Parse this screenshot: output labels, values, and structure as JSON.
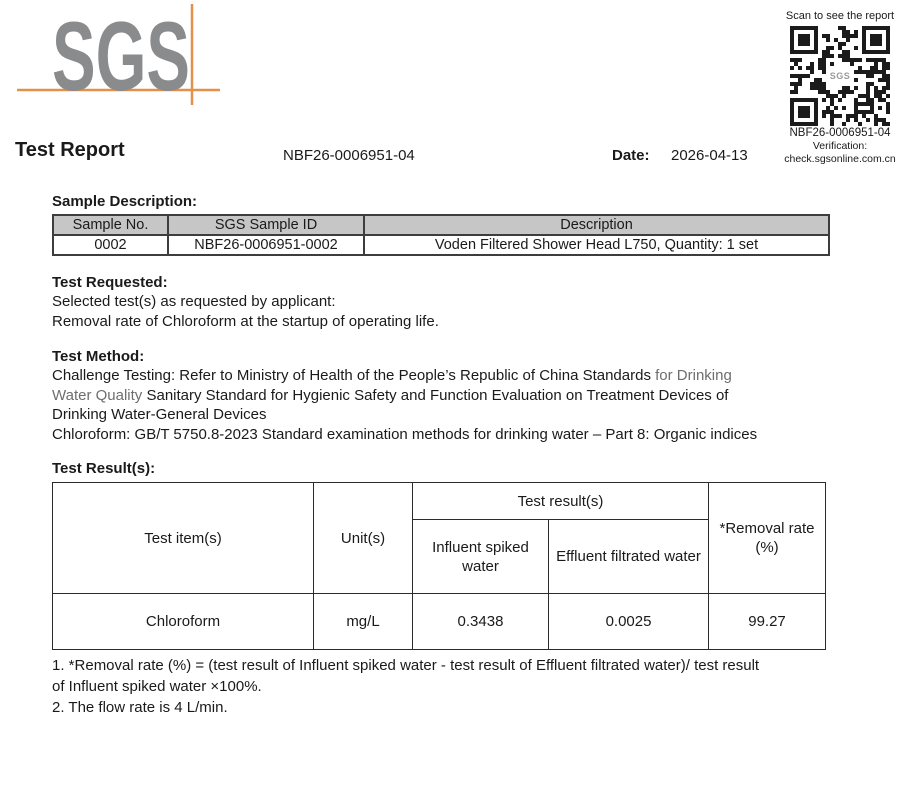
{
  "logo": {
    "text": "SGS",
    "letters_color": "#8a8b8d",
    "crosshair_color": "#e2914a"
  },
  "qr_panel": {
    "scan_label": "Scan to see the report",
    "center_label": "SGS",
    "report_no": "NBF26-0006951-04",
    "verification_label": "Verification:",
    "verification_url": "check.sgsonline.com.cn"
  },
  "header": {
    "title": "Test Report",
    "report_no": "NBF26-0006951-04",
    "date_label": "Date:",
    "date_value": "2026-04-13"
  },
  "sample_description": {
    "heading": "Sample Description:",
    "header_bg": "#c6c6c6",
    "columns": [
      "Sample No.",
      "SGS Sample ID",
      "Description"
    ],
    "rows": [
      [
        "0002",
        "NBF26-0006951-0002",
        "Voden Filtered Shower Head L750, Quantity: 1 set"
      ]
    ]
  },
  "test_requested": {
    "heading": "Test Requested:",
    "line1": "Selected test(s) as requested by applicant:",
    "line2": "Removal rate of Chloroform at the startup of operating life."
  },
  "test_method": {
    "heading": "Test Method:",
    "gray_text_color": "#6e6e6e",
    "line1_black": "Challenge Testing: Refer to Ministry of Health of the People’s Republic of China Standards",
    "line1_gray": "for Drinking",
    "line2_gray": "Water Quality",
    "line2_black": "Sanitary Standard for Hygienic Safety and Function Evaluation on Treatment Devices of",
    "line3": "Drinking Water-General Devices",
    "line4": "Chloroform: GB/T 5750.8-2023 Standard examination methods for drinking water – Part 8: Organic indices"
  },
  "test_results": {
    "heading": "Test Result(s):",
    "columns": {
      "test_item": "Test item(s)",
      "unit": "Unit(s)",
      "result_group": "Test result(s)",
      "influent": "Influent spiked water",
      "effluent": "Effluent filtrated water",
      "removal_rate": "*Removal rate (%)"
    },
    "rows": [
      {
        "item": "Chloroform",
        "unit": "mg/L",
        "influent": "0.3438",
        "effluent": "0.0025",
        "removal_rate": "99.27"
      }
    ]
  },
  "footnotes": {
    "note1_line1": "1. *Removal rate (%) = (test result of Influent spiked water - test result of Effluent filtrated water)/ test result",
    "note1_line2": "of Influent spiked water ×100%.",
    "note2": "2. The flow rate is 4 L/min."
  }
}
